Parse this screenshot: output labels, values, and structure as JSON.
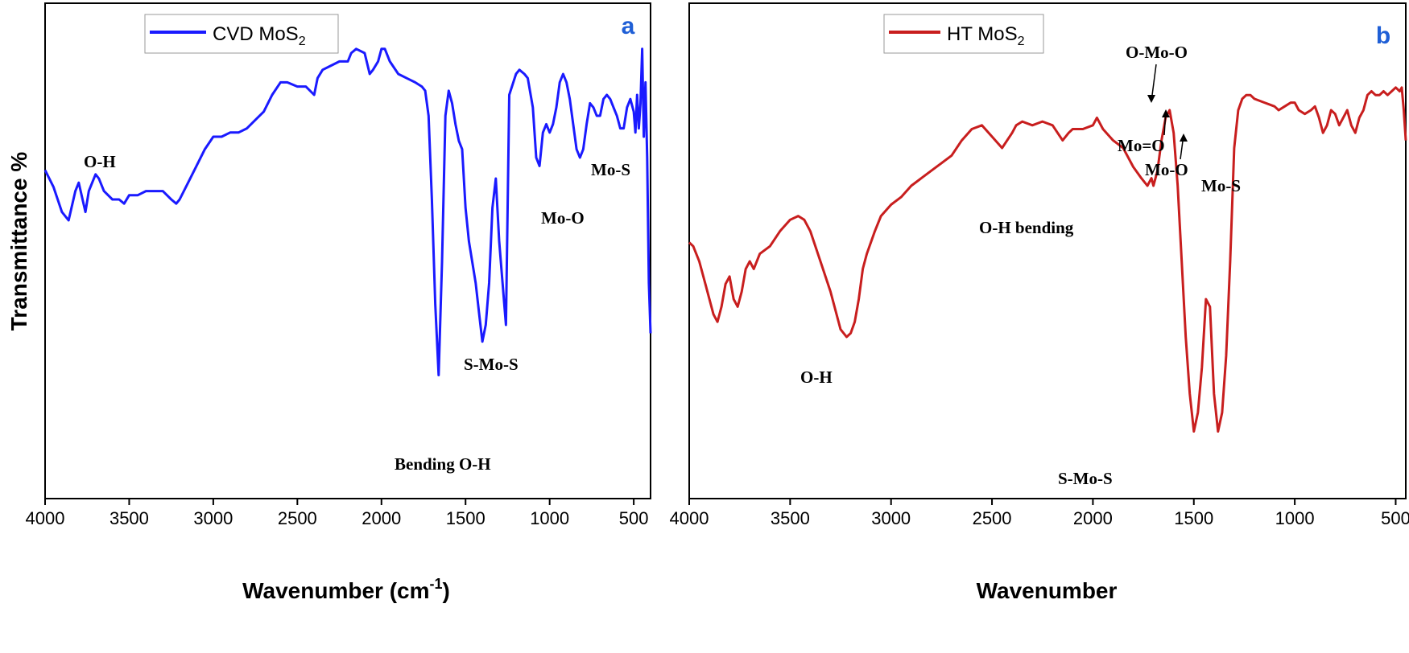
{
  "y_axis_title": "Transmittance %",
  "chart_data": [
    {
      "type": "line",
      "panel": "a",
      "xlabel": "Wavenumber (cm-1)",
      "xlabel_base": "Wavenumber (cm",
      "xlabel_sup": "-1",
      "xlabel_tail": ")",
      "ylabel": "Transmittance %",
      "xlim": [
        4000,
        400
      ],
      "ylim": [
        0,
        100
      ],
      "x_ticks": [
        4000,
        3500,
        3000,
        2500,
        2000,
        1500,
        1000,
        500
      ],
      "grid": false,
      "legend_position": "top-left",
      "color": "#1a1aff",
      "series": [
        {
          "name": "CVD MoS2",
          "name_base": "CVD MoS",
          "name_sub": "2",
          "x": [
            4000,
            3950,
            3900,
            3860,
            3820,
            3800,
            3760,
            3740,
            3700,
            3680,
            3650,
            3600,
            3560,
            3530,
            3500,
            3450,
            3400,
            3350,
            3300,
            3250,
            3220,
            3200,
            3150,
            3100,
            3050,
            3000,
            2950,
            2900,
            2850,
            2800,
            2750,
            2700,
            2650,
            2600,
            2560,
            2500,
            2450,
            2400,
            2380,
            2350,
            2300,
            2250,
            2200,
            2180,
            2150,
            2100,
            2070,
            2050,
            2020,
            2000,
            1980,
            1950,
            1900,
            1850,
            1800,
            1760,
            1740,
            1720,
            1700,
            1680,
            1660,
            1640,
            1620,
            1600,
            1580,
            1560,
            1540,
            1520,
            1500,
            1480,
            1460,
            1440,
            1420,
            1400,
            1380,
            1360,
            1340,
            1320,
            1300,
            1280,
            1260,
            1240,
            1200,
            1180,
            1150,
            1130,
            1100,
            1080,
            1060,
            1040,
            1020,
            1000,
            980,
            960,
            940,
            920,
            900,
            880,
            860,
            840,
            820,
            800,
            780,
            760,
            740,
            720,
            700,
            680,
            660,
            640,
            620,
            600,
            580,
            560,
            540,
            520,
            500,
            490,
            480,
            470,
            460,
            450,
            440,
            430,
            420,
            410,
            400
          ],
          "y": [
            67,
            63,
            57,
            55,
            62,
            64,
            57,
            62,
            66,
            65,
            62,
            60,
            60,
            59,
            61,
            61,
            62,
            62,
            62,
            60,
            59,
            60,
            64,
            68,
            72,
            75,
            75,
            76,
            76,
            77,
            79,
            81,
            85,
            88,
            88,
            87,
            87,
            85,
            89,
            91,
            92,
            93,
            93,
            95,
            96,
            95,
            90,
            91,
            93,
            96,
            96,
            93,
            90,
            89,
            88,
            87,
            86,
            80,
            60,
            35,
            18,
            45,
            80,
            86,
            83,
            78,
            74,
            72,
            58,
            50,
            45,
            40,
            33,
            26,
            30,
            40,
            58,
            65,
            50,
            40,
            30,
            85,
            90,
            91,
            90,
            89,
            82,
            70,
            68,
            76,
            78,
            76,
            78,
            82,
            88,
            90,
            88,
            84,
            78,
            72,
            70,
            72,
            78,
            83,
            82,
            80,
            80,
            84,
            85,
            84,
            82,
            80,
            77,
            77,
            82,
            84,
            81,
            76,
            85,
            77,
            83,
            96,
            75,
            88,
            70,
            40,
            28
          ]
        }
      ],
      "annotations": [
        {
          "text": "O-H"
        },
        {
          "text": "Mo-S"
        },
        {
          "text": "Mo-O"
        },
        {
          "text": "S-Mo-S"
        },
        {
          "text": "Bending O-H"
        }
      ]
    },
    {
      "type": "line",
      "panel": "b",
      "xlabel": "Wavenumber",
      "xlim": [
        4000,
        450
      ],
      "ylim": [
        0,
        100
      ],
      "x_ticks": [
        4000,
        3500,
        3000,
        2500,
        2000,
        1500,
        1000,
        500
      ],
      "grid": false,
      "legend_position": "top-left",
      "color": "#c81e1e",
      "series": [
        {
          "name": "HT MoS2",
          "name_base": "HT MoS",
          "name_sub": "2",
          "x": [
            4000,
            3980,
            3950,
            3920,
            3900,
            3880,
            3860,
            3840,
            3820,
            3800,
            3780,
            3760,
            3740,
            3720,
            3700,
            3680,
            3650,
            3600,
            3550,
            3500,
            3460,
            3430,
            3400,
            3350,
            3300,
            3250,
            3220,
            3200,
            3180,
            3160,
            3140,
            3120,
            3100,
            3080,
            3050,
            3000,
            2950,
            2900,
            2850,
            2800,
            2750,
            2700,
            2650,
            2600,
            2550,
            2500,
            2450,
            2400,
            2380,
            2350,
            2300,
            2250,
            2200,
            2150,
            2120,
            2100,
            2050,
            2000,
            1980,
            1950,
            1900,
            1850,
            1800,
            1760,
            1730,
            1710,
            1700,
            1680,
            1660,
            1640,
            1620,
            1600,
            1580,
            1560,
            1540,
            1520,
            1500,
            1480,
            1460,
            1440,
            1420,
            1400,
            1380,
            1360,
            1340,
            1320,
            1300,
            1280,
            1260,
            1240,
            1220,
            1200,
            1150,
            1100,
            1080,
            1050,
            1020,
            1000,
            980,
            950,
            920,
            900,
            880,
            860,
            840,
            820,
            800,
            780,
            760,
            740,
            720,
            700,
            680,
            660,
            640,
            620,
            600,
            580,
            560,
            540,
            520,
            500,
            480,
            470,
            460,
            450
          ],
          "y": [
            55,
            54,
            50,
            44,
            40,
            36,
            34,
            38,
            44,
            46,
            40,
            38,
            42,
            48,
            50,
            48,
            52,
            54,
            58,
            61,
            62,
            61,
            58,
            50,
            42,
            32,
            30,
            31,
            34,
            40,
            48,
            52,
            55,
            58,
            62,
            65,
            67,
            70,
            72,
            74,
            76,
            78,
            82,
            85,
            86,
            83,
            80,
            84,
            86,
            87,
            86,
            87,
            86,
            82,
            84,
            85,
            85,
            86,
            88,
            85,
            82,
            80,
            75,
            72,
            70,
            72,
            70,
            74,
            82,
            88,
            90,
            84,
            70,
            50,
            30,
            15,
            5,
            10,
            22,
            40,
            38,
            15,
            5,
            10,
            25,
            50,
            80,
            90,
            93,
            94,
            94,
            93,
            92,
            91,
            90,
            91,
            92,
            92,
            90,
            89,
            90,
            91,
            88,
            84,
            86,
            90,
            89,
            86,
            88,
            90,
            86,
            84,
            88,
            90,
            94,
            95,
            94,
            94,
            95,
            94,
            95,
            96,
            95,
            96,
            90,
            82
          ]
        }
      ],
      "annotations": [
        {
          "text": "O-Mo-O"
        },
        {
          "text": "Mo=O"
        },
        {
          "text": "Mo-O"
        },
        {
          "text": "Mo-S"
        },
        {
          "text": "O-H bending"
        },
        {
          "text": "O-H"
        },
        {
          "text": "S-Mo-S"
        }
      ]
    }
  ]
}
